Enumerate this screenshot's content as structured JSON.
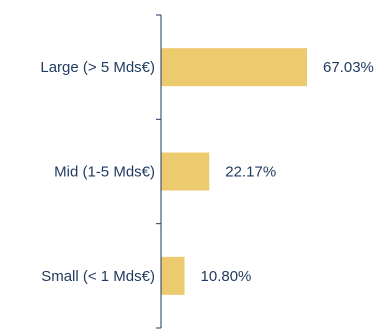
{
  "chart_data": {
    "type": "bar",
    "orientation": "horizontal",
    "categories": [
      "Large (> 5 Mds€)",
      "Mid (1-5 Mds€)",
      "Small (< 1 Mds€)"
    ],
    "values": [
      67.03,
      22.17,
      10.8
    ],
    "value_labels": [
      "67.03%",
      "22.17%",
      "10.80%"
    ],
    "title": "",
    "xlabel": "",
    "ylabel": "",
    "xlim": [
      0,
      100
    ],
    "grid": false,
    "legend": "none",
    "colors": {
      "bar": "#ecca6e",
      "axis": "#1f3a5f",
      "text": "#1f3a5f"
    }
  }
}
